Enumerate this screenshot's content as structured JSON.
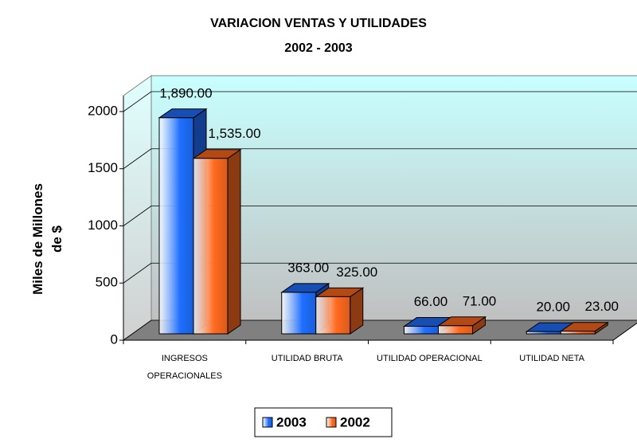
{
  "chart_data": {
    "type": "bar3d",
    "title": "VARIACION VENTAS Y UTILIDADES",
    "subtitle": "2002 - 2003",
    "y_label": "Miles de Millones de $",
    "categories": [
      "INGRESOS OPERACIONALES",
      "UTILIDAD BRUTA",
      "UTILIDAD OPERACIONAL",
      "UTILIDAD NETA"
    ],
    "series": [
      {
        "name": "2003",
        "color": "#1f6fff",
        "values": [
          1890,
          363,
          66,
          20
        ],
        "value_labels": [
          "1,890.00",
          "363.00",
          "66.00",
          "20.00"
        ]
      },
      {
        "name": "2002",
        "color": "#ff6a1f",
        "values": [
          1535,
          325,
          71,
          23
        ],
        "value_labels": [
          "1,535.00",
          "325.00",
          "71.00",
          "23.00"
        ]
      }
    ],
    "ylim": [
      0,
      2000
    ],
    "yticks": [
      0,
      500,
      1000,
      1500,
      2000
    ],
    "grid": true,
    "legend": "bottom"
  }
}
